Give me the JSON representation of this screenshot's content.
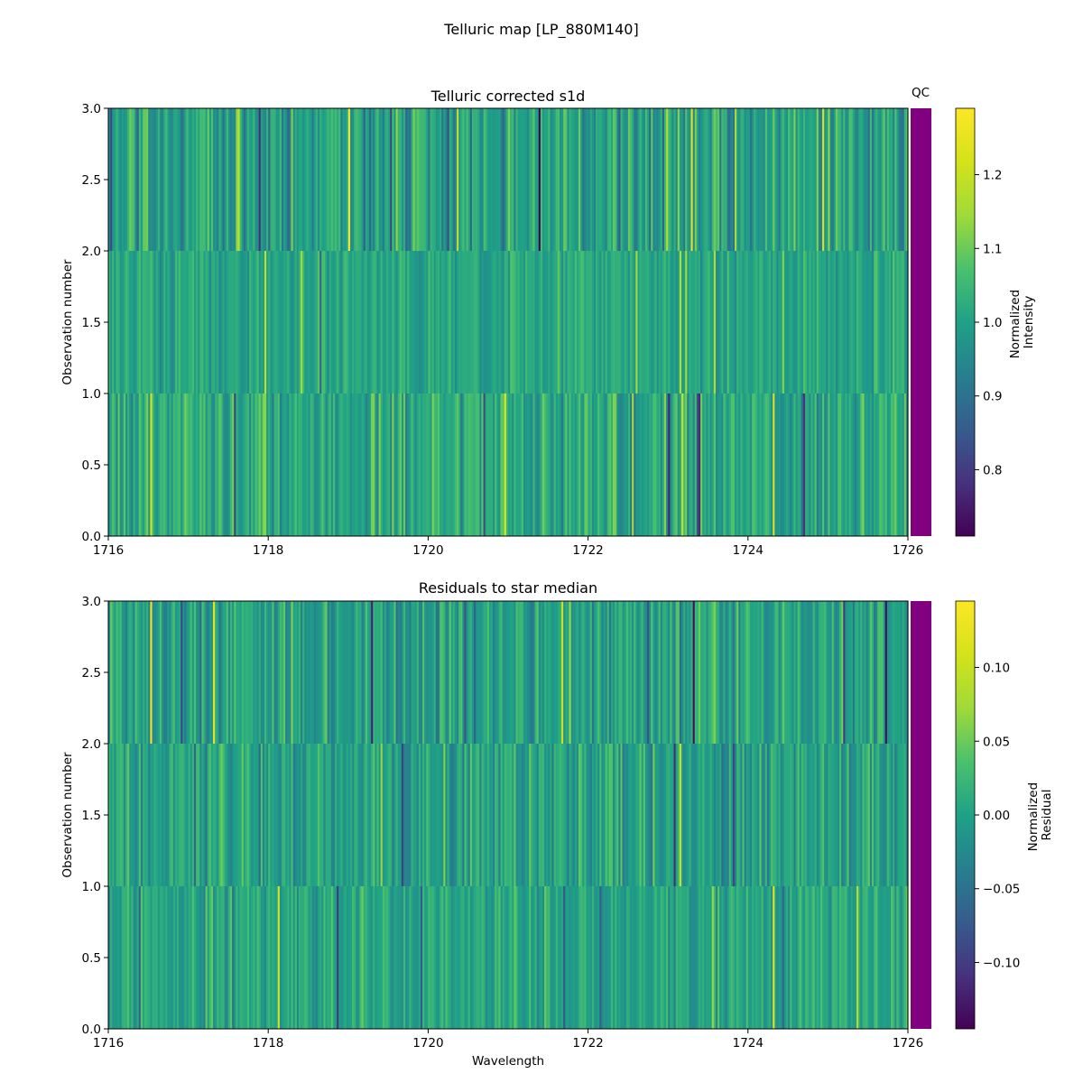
{
  "figure": {
    "suptitle": "Telluric map [LP_880M140]"
  },
  "chart_data": [
    {
      "type": "heatmap",
      "title": "Telluric corrected s1d",
      "xlabel": "",
      "ylabel": "Observation number",
      "xlim": [
        1716,
        1726
      ],
      "ylim": [
        0.0,
        3.0
      ],
      "x_ticks": [
        "1716",
        "1718",
        "1720",
        "1722",
        "1724",
        "1726"
      ],
      "y_ticks": [
        "0.0",
        "0.5",
        "1.0",
        "1.5",
        "2.0",
        "2.5",
        "3.0"
      ],
      "rows": [
        {
          "observation": 0,
          "y_range": [
            0,
            1
          ],
          "mean": 1.02,
          "spread": 0.09
        },
        {
          "observation": 1,
          "y_range": [
            1,
            2
          ],
          "mean": 1.01,
          "spread": 0.06
        },
        {
          "observation": 2,
          "y_range": [
            2,
            3
          ],
          "mean": 1.0,
          "spread": 0.1
        }
      ],
      "colormap": "viridis",
      "colorbar": {
        "label_lines": [
          "Normalized",
          "Intensity"
        ],
        "vmin": 0.71,
        "vmax": 1.29,
        "ticks": [
          0.8,
          0.9,
          1.0,
          1.1,
          1.2
        ],
        "tick_labels": [
          "0.8",
          "0.9",
          "1.0",
          "1.1",
          "1.2"
        ]
      },
      "qc": {
        "label": "QC",
        "color": "#800080"
      }
    },
    {
      "type": "heatmap",
      "title": "Residuals to star median",
      "xlabel": "Wavelength",
      "ylabel": "Observation number",
      "xlim": [
        1716,
        1726
      ],
      "ylim": [
        0.0,
        3.0
      ],
      "x_ticks": [
        "1716",
        "1718",
        "1720",
        "1722",
        "1724",
        "1726"
      ],
      "y_ticks": [
        "0.0",
        "0.5",
        "1.0",
        "1.5",
        "2.0",
        "2.5",
        "3.0"
      ],
      "rows": [
        {
          "observation": 0,
          "y_range": [
            0,
            1
          ],
          "mean": 0.005,
          "spread": 0.035
        },
        {
          "observation": 1,
          "y_range": [
            1,
            2
          ],
          "mean": 0.0,
          "spread": 0.04
        },
        {
          "observation": 2,
          "y_range": [
            2,
            3
          ],
          "mean": 0.0,
          "spread": 0.045
        }
      ],
      "colormap": "viridis",
      "colorbar": {
        "label_lines": [
          "Normalized",
          "Residual"
        ],
        "vmin": -0.145,
        "vmax": 0.145,
        "ticks": [
          -0.1,
          -0.05,
          0.0,
          0.05,
          0.1
        ],
        "tick_labels": [
          "−0.10",
          "−0.05",
          "0.00",
          "0.05",
          "0.10"
        ]
      },
      "qc": {
        "label": "",
        "color": "#800080"
      }
    }
  ]
}
